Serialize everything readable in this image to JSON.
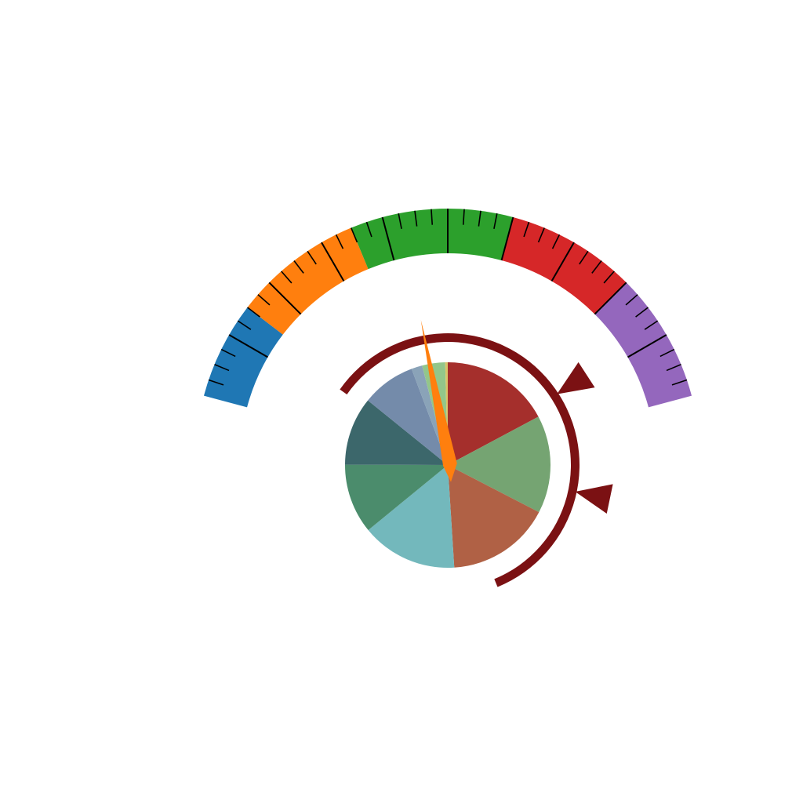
{
  "chart_data": {
    "type": "gauge",
    "gauge": {
      "range": [
        0,
        100
      ],
      "bands": [
        {
          "from": 0,
          "to": 15,
          "color": "#1f77b4"
        },
        {
          "from": 15,
          "to": 35,
          "color": "#ff7f0e"
        },
        {
          "from": 35,
          "to": 60,
          "color": "#2ca02c"
        },
        {
          "from": 60,
          "to": 80,
          "color": "#d62728"
        },
        {
          "from": 80,
          "to": 100,
          "color": "#9467bd"
        }
      ],
      "major_tick_step": 10,
      "minor_tick_step": 2.5,
      "value": 43,
      "needle_color": "#ff7f0e"
    },
    "pie": {
      "slices": [
        {
          "value": 17.1,
          "color": "#a52f2c"
        },
        {
          "value": 15.3,
          "color": "#75a472"
        },
        {
          "value": 16.3,
          "color": "#b06145"
        },
        {
          "value": 15.0,
          "color": "#73b8bc"
        },
        {
          "value": 10.9,
          "color": "#4b8c6c"
        },
        {
          "value": 10.7,
          "color": "#3c676b"
        },
        {
          "value": 8.4,
          "color": "#748baa"
        },
        {
          "value": 1.7,
          "color": "#8aa3b8"
        },
        {
          "value": 3.6,
          "color": "#93c68a"
        },
        {
          "value": 0.4,
          "color": "#d9c46a"
        }
      ]
    },
    "ring": {
      "color": "#7b1113",
      "range": [
        0,
        100
      ],
      "start_value": 0,
      "end_value": 76,
      "markers": [
        40,
        56
      ]
    }
  }
}
